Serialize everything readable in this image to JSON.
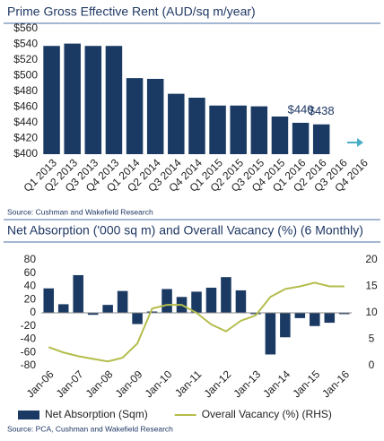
{
  "chart_data": [
    {
      "type": "bar",
      "title": "Prime Gross Effective Rent (AUD/sq m/year)",
      "categories": [
        "Q1 2013",
        "Q2 2013",
        "Q3 2013",
        "Q4 2013",
        "Q1 2014",
        "Q2 2014",
        "Q3 2014",
        "Q4 2014",
        "Q1 2015",
        "Q2 2015",
        "Q3 2015",
        "Q4 2015",
        "Q1 2016",
        "Q2 2016",
        "Q3 2016",
        "Q4 2016"
      ],
      "values": [
        538,
        541,
        538,
        538,
        497,
        496,
        477,
        472,
        462,
        462,
        461,
        448,
        440,
        438,
        null,
        null
      ],
      "value_labels": [
        null,
        null,
        null,
        null,
        null,
        null,
        null,
        null,
        null,
        null,
        null,
        null,
        "$440",
        "$438",
        null,
        null
      ],
      "color": "#1b3a63",
      "ylim": [
        400,
        560
      ],
      "yticks": [
        {
          "value": 400,
          "label": "$400"
        },
        {
          "value": 420,
          "label": "$420"
        },
        {
          "value": 440,
          "label": "$440"
        },
        {
          "value": 460,
          "label": "$460"
        },
        {
          "value": 480,
          "label": "$480"
        },
        {
          "value": 500,
          "label": "$500"
        },
        {
          "value": 520,
          "label": "$520"
        },
        {
          "value": 540,
          "label": "$540"
        },
        {
          "value": 560,
          "label": "$560"
        }
      ],
      "grid": false,
      "source": "Source: Cushman and Wakefield Research"
    },
    {
      "type": "bar_line",
      "title": "Net Absorption ('000 sq m) and Overall Vacancy (%) (6 Monthly)",
      "categories": [
        "Jan-06",
        null,
        "Jan-07",
        null,
        "Jan-08",
        null,
        "Jan-09",
        null,
        "Jan-10",
        null,
        "Jan-11",
        null,
        "Jan-12",
        null,
        "Jan-13",
        null,
        "Jan-14",
        null,
        "Jan-15",
        null,
        "Jan-16"
      ],
      "series": [
        {
          "name": "Net Absorption (Sqm)",
          "type": "bar",
          "color": "#1b3a63",
          "values": [
            37,
            13,
            57,
            -3,
            12,
            33,
            -17,
            2,
            36,
            24,
            32,
            38,
            54,
            34,
            -2,
            -63,
            -37,
            -8,
            -20,
            -15,
            -2
          ]
        },
        {
          "name": "Overall Vacancy (%) (RHS)",
          "type": "line",
          "axis": "y2",
          "color": "#b5bd4c",
          "values": [
            3.5,
            2.5,
            1.8,
            1.3,
            0.8,
            1.5,
            4.2,
            10.8,
            11.5,
            11.5,
            10,
            7.8,
            6.5,
            8.5,
            9.5,
            13,
            14.5,
            15,
            15.7,
            15,
            15
          ]
        }
      ],
      "ylim": [
        -80,
        80
      ],
      "yticks": [
        -80,
        -60,
        -40,
        -20,
        0,
        20,
        40,
        60,
        80
      ],
      "y2lim": [
        0,
        20
      ],
      "y2ticks": [
        0,
        5,
        10,
        15,
        20
      ],
      "grid": false,
      "legend": "bottom",
      "source": "Source: PCA, Cushman and Wakefield Research"
    }
  ]
}
